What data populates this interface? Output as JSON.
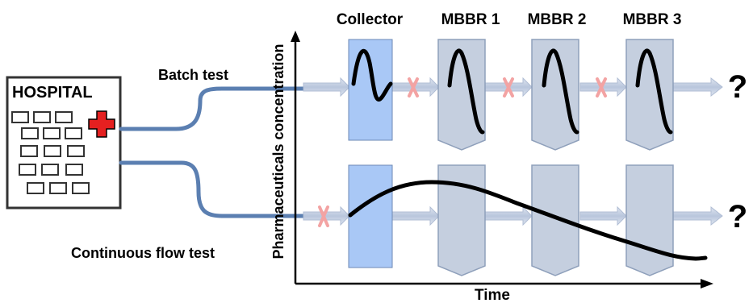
{
  "hospital": {
    "label": "HOSPITAL"
  },
  "tests": {
    "batch": "Batch test",
    "continuous": "Continuous flow test"
  },
  "axes": {
    "y_label": "Pharmaceuticals concentration",
    "x_label": "Time"
  },
  "units": [
    {
      "id": "collector",
      "label": "Collector"
    },
    {
      "id": "mbbr1",
      "label": "MBBR 1"
    },
    {
      "id": "mbbr2",
      "label": "MBBR 2"
    },
    {
      "id": "mbbr3",
      "label": "MBBR 3"
    }
  ],
  "outcomes": {
    "batch": "?",
    "continuous": "?"
  },
  "colors": {
    "pipe": "#5b7fb1",
    "collector_fill": "#a9c8f6",
    "reactor_fill": "#c5cfdf",
    "reactor_stroke": "#8fa0bb",
    "flow_arrow": "#c1ccdf",
    "block_mark": "#f3a3a3",
    "cross": "#e52020"
  },
  "icons": {
    "cross": "red-cross-icon",
    "block": "x-mark-icon",
    "flow": "arrow-right-icon"
  }
}
